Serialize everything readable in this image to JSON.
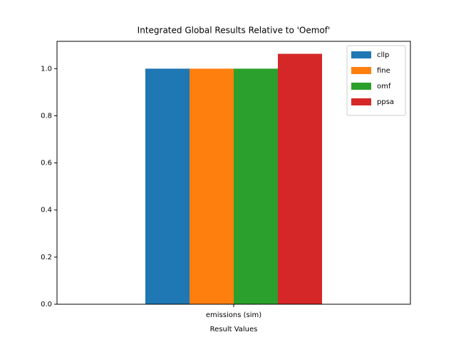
{
  "chart_data": {
    "type": "bar",
    "title": "Integrated Global Results Relative to 'Oemof'",
    "x_label": "Result Values",
    "categories": [
      "emissions (sim)"
    ],
    "series": [
      {
        "name": "cllp",
        "color": "#1f77b4",
        "values": [
          1.0
        ]
      },
      {
        "name": "fine",
        "color": "#ff7f0e",
        "values": [
          1.0
        ]
      },
      {
        "name": "omf",
        "color": "#2ca02c",
        "values": [
          1.0
        ]
      },
      {
        "name": "ppsa",
        "color": "#d62728",
        "values": [
          1.063
        ]
      }
    ],
    "ylim": [
      0,
      1.116
    ],
    "yticks": [
      {
        "value": 0,
        "label": "0.0"
      },
      0.2,
      0.4,
      0.6,
      0.8,
      {
        "value": 1,
        "label": "1.0"
      }
    ],
    "legend": "upper right"
  }
}
